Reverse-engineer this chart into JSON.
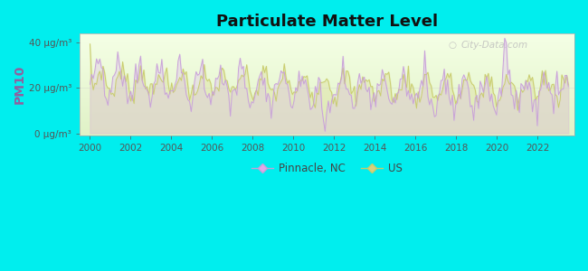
{
  "title": "Particulate Matter Level",
  "ylabel": "PM10",
  "yticks": [
    0,
    20,
    40
  ],
  "ytick_labels": [
    "0 μg/m³",
    "20 μg/m³",
    "40 μg/m³"
  ],
  "xticks": [
    2000,
    2002,
    2004,
    2006,
    2008,
    2010,
    2012,
    2014,
    2016,
    2018,
    2020,
    2022
  ],
  "xlim": [
    1999.5,
    2023.8
  ],
  "ylim": [
    -1,
    44
  ],
  "bg_color": "#00EEEE",
  "plot_bg_top": "#f0f8e0",
  "plot_bg_bottom": "#e0f0c0",
  "line_pinnacle_color": "#c8a0d8",
  "line_us_color": "#c8cc6a",
  "fill_pinnacle_color": "#ddc0ee",
  "fill_us_color": "#dde0a0",
  "legend_marker_pinnacle": "#e0a8e8",
  "legend_marker_us": "#d8d080",
  "watermark": "City-Data.com",
  "title_fontsize": 13,
  "label_fontsize": 8.5,
  "tick_fontsize": 7.5,
  "ylabel_color": "#9060a0"
}
